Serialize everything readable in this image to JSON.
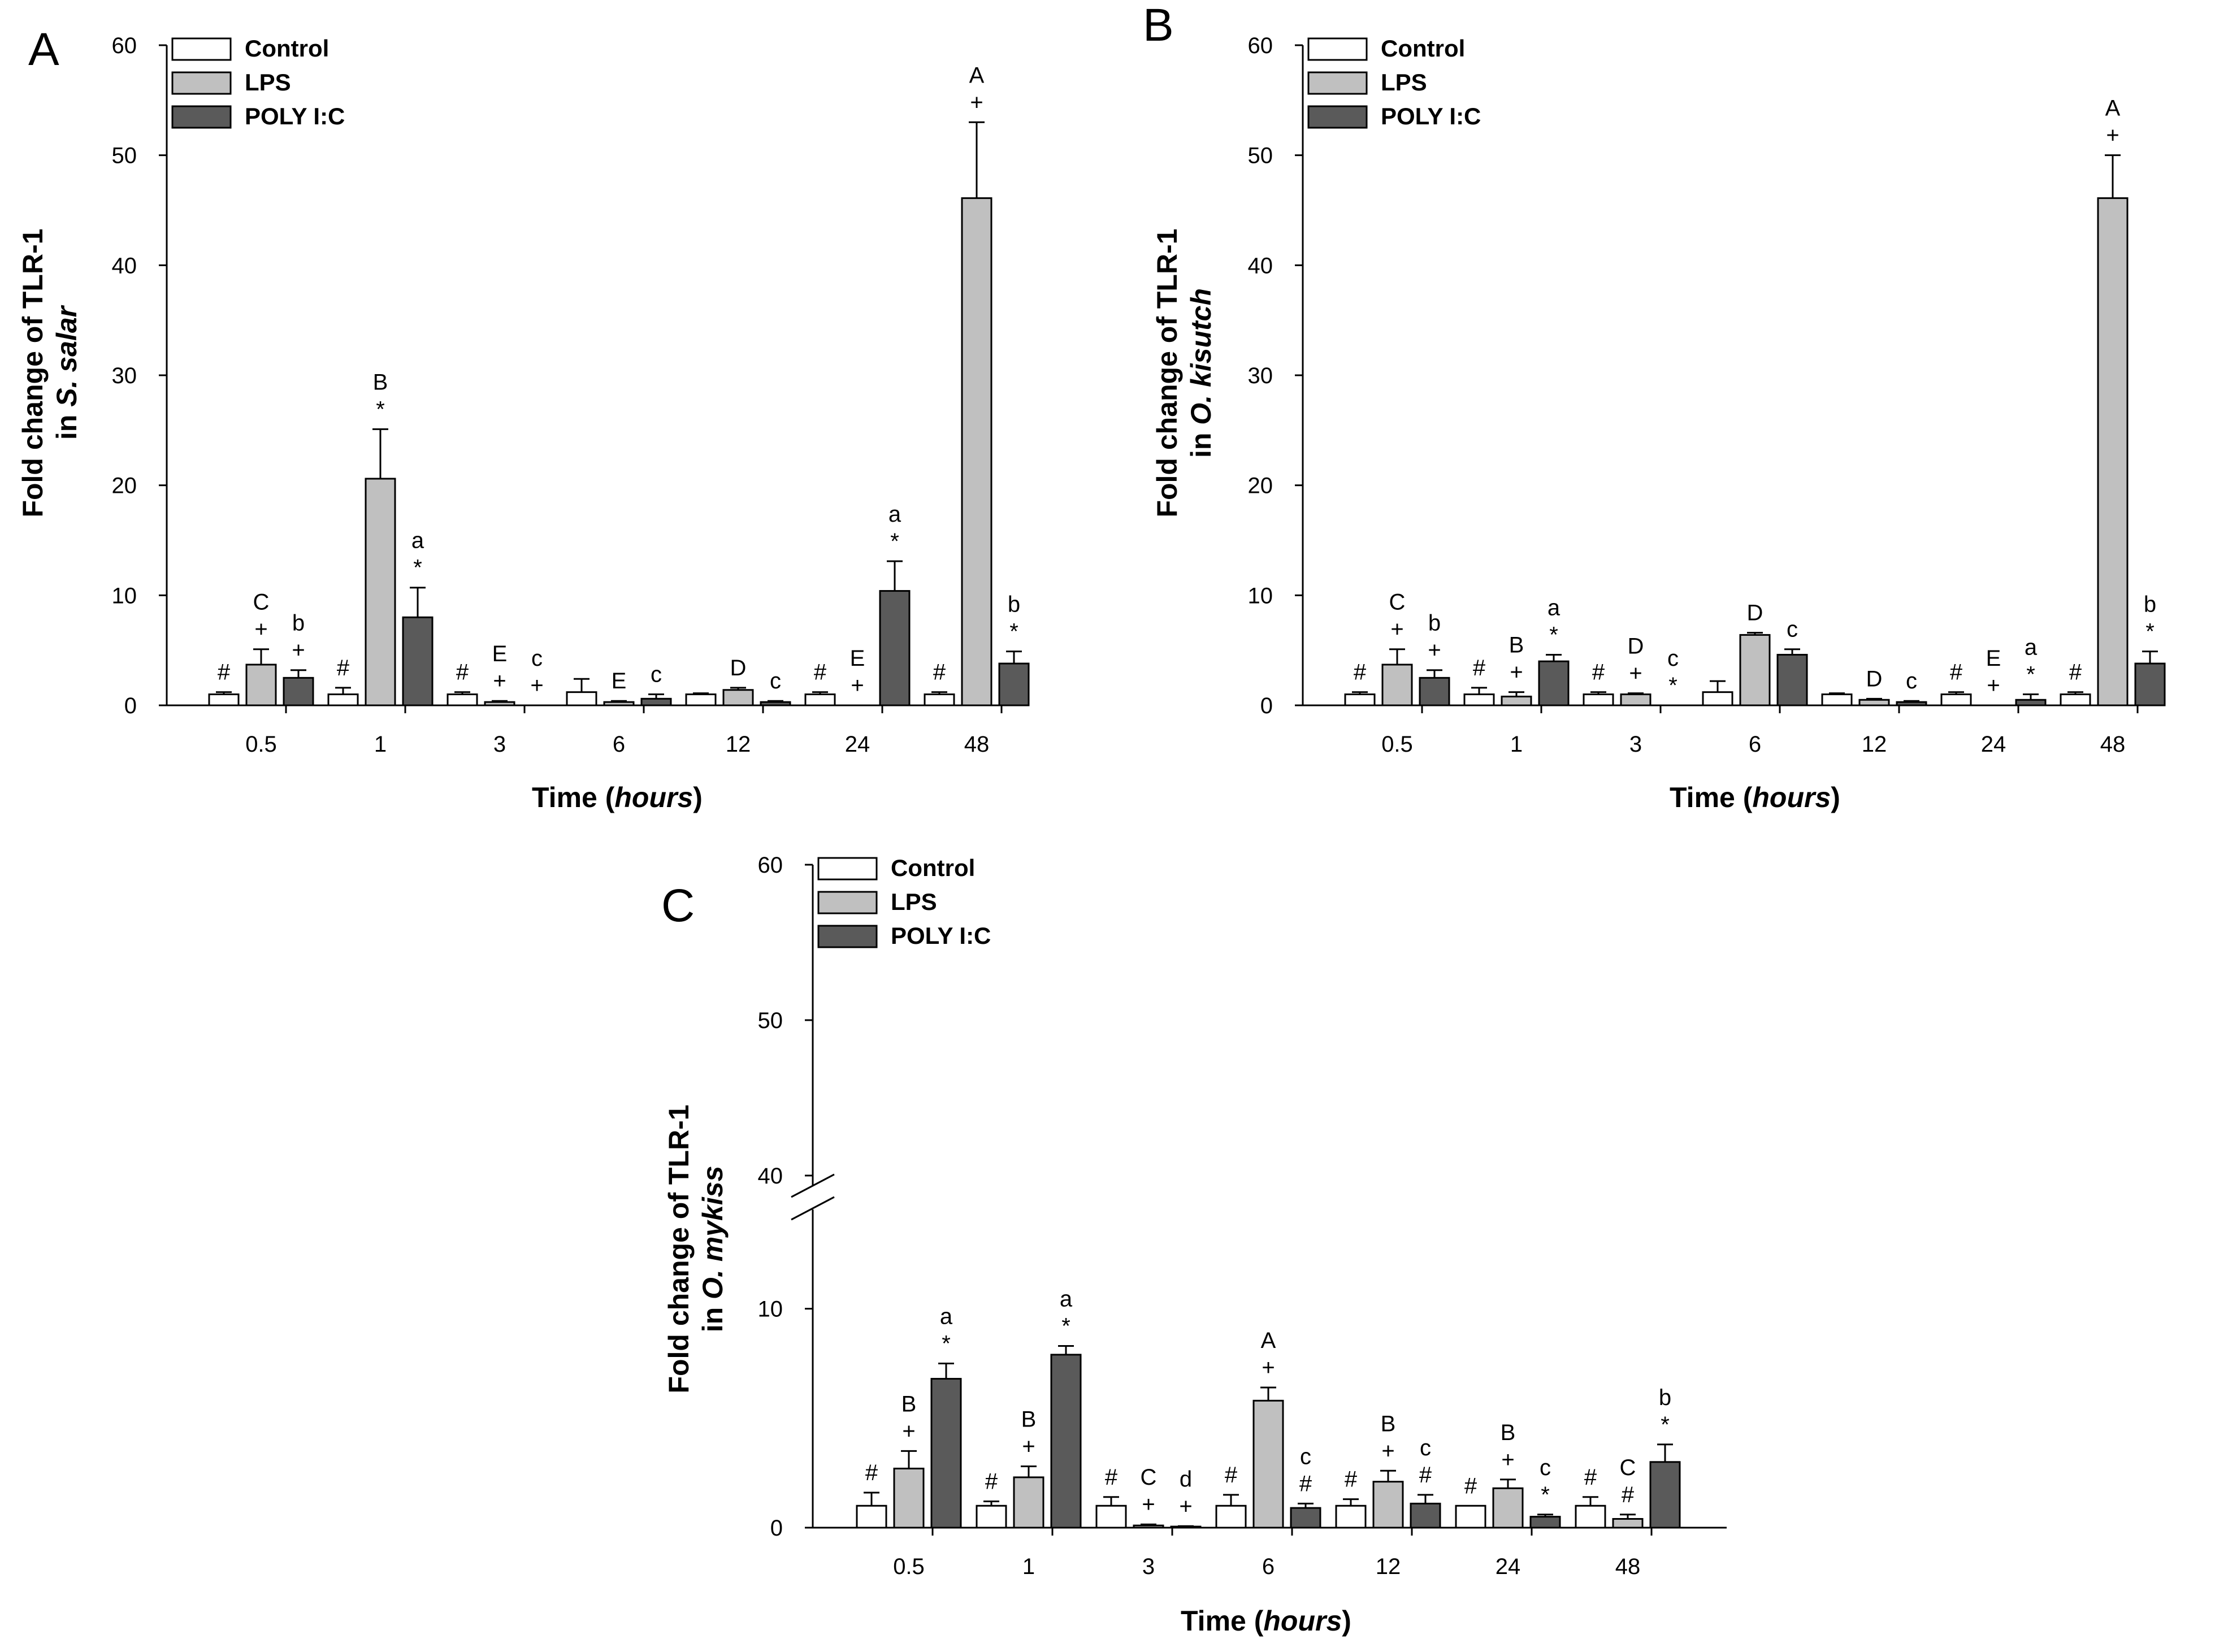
{
  "legend": {
    "control": "Control",
    "lps": "LPS",
    "poly": "POLY I:C"
  },
  "colors": {
    "control": "#ffffff",
    "lps": "#c0c0c0",
    "poly": "#5a5a5a"
  },
  "chart_data": [
    {
      "type": "bar",
      "panel_label": "A",
      "categories": [
        "0.5",
        "1",
        "3",
        "6",
        "12",
        "24",
        "48"
      ],
      "ylabel_line1": "Fold change of TLR-1",
      "ylabel_line2_prefix": "in ",
      "ylabel_line2_species": "S. salar",
      "xlabel_prefix": "Time (",
      "xlabel_unit": "hours",
      "xlabel_suffix": ")",
      "ylim": [
        0,
        60
      ],
      "yticks": [
        "0",
        "10",
        "20",
        "30",
        "40",
        "50",
        "60"
      ],
      "legend_position": "top-left",
      "series": [
        {
          "name": "Control",
          "values": [
            1.0,
            1.0,
            1.0,
            1.2,
            1.0,
            1.0,
            1.0
          ],
          "errors": [
            0.2,
            0.6,
            0.2,
            1.2,
            0.1,
            0.2,
            0.2
          ],
          "annotations": [
            [
              "#"
            ],
            [
              "#"
            ],
            [
              "#"
            ],
            [],
            [],
            [
              "#"
            ],
            [
              "#"
            ]
          ]
        },
        {
          "name": "LPS",
          "values": [
            3.7,
            20.6,
            0.3,
            0.3,
            1.4,
            0,
            46.1
          ],
          "errors": [
            1.4,
            4.5,
            0.1,
            0.1,
            0.2,
            0,
            6.9
          ],
          "annotations": [
            [
              "+",
              "C"
            ],
            [
              "*",
              "B"
            ],
            [
              "+",
              "E"
            ],
            [
              "E"
            ],
            [
              "D"
            ],
            [
              "+",
              "E"
            ],
            [
              "+",
              "A"
            ]
          ]
        },
        {
          "name": "POLY I:C",
          "values": [
            2.5,
            8.0,
            0,
            0.6,
            0.3,
            10.4,
            3.8
          ],
          "errors": [
            0.7,
            2.7,
            0,
            0.4,
            0.1,
            2.7,
            1.1
          ],
          "annotations": [
            [
              "+",
              "b"
            ],
            [
              "*",
              "a"
            ],
            [
              "+",
              "c"
            ],
            [
              "c"
            ],
            [
              "c"
            ],
            [
              "*",
              "a"
            ],
            [
              "*",
              "b"
            ]
          ]
        }
      ]
    },
    {
      "type": "bar",
      "panel_label": "B",
      "categories": [
        "0.5",
        "1",
        "3",
        "6",
        "12",
        "24",
        "48"
      ],
      "ylabel_line1": "Fold change of TLR-1",
      "ylabel_line2_prefix": "in ",
      "ylabel_line2_species": "O. kisutch",
      "xlabel_prefix": "Time (",
      "xlabel_unit": "hours",
      "xlabel_suffix": ")",
      "ylim": [
        0,
        60
      ],
      "yticks": [
        "0",
        "10",
        "20",
        "30",
        "40",
        "50",
        "60"
      ],
      "legend_position": "top-left",
      "series": [
        {
          "name": "Control",
          "values": [
            1.0,
            1.0,
            1.0,
            1.2,
            1.0,
            1.0,
            1.0
          ],
          "errors": [
            0.2,
            0.6,
            0.2,
            1.0,
            0.1,
            0.2,
            0.2
          ],
          "annotations": [
            [
              "#"
            ],
            [
              "#"
            ],
            [
              "#"
            ],
            [],
            [],
            [
              "#"
            ],
            [
              "#"
            ]
          ]
        },
        {
          "name": "LPS",
          "values": [
            3.7,
            0.8,
            1.0,
            6.4,
            0.5,
            0,
            46.1
          ],
          "errors": [
            1.4,
            0.4,
            0.1,
            0.2,
            0.1,
            0,
            3.9
          ],
          "annotations": [
            [
              "+",
              "C"
            ],
            [
              "+",
              "B"
            ],
            [
              "+",
              "D"
            ],
            [
              "D"
            ],
            [
              "D"
            ],
            [
              "+",
              "E"
            ],
            [
              "+",
              "A"
            ]
          ]
        },
        {
          "name": "POLY I:C",
          "values": [
            2.5,
            4.0,
            0,
            4.6,
            0.3,
            0.5,
            3.8
          ],
          "errors": [
            0.7,
            0.6,
            0,
            0.5,
            0.1,
            0.5,
            1.1
          ],
          "annotations": [
            [
              "+",
              "b"
            ],
            [
              "*",
              "a"
            ],
            [
              "*",
              "c"
            ],
            [
              "c"
            ],
            [
              "c"
            ],
            [
              "*",
              "a"
            ],
            [
              "*",
              "b"
            ]
          ]
        }
      ]
    },
    {
      "type": "bar",
      "panel_label": "C",
      "categories": [
        "0.5",
        "1",
        "3",
        "6",
        "12",
        "24",
        "48"
      ],
      "ylabel_line1": "Fold change of TLR-1",
      "ylabel_line2_prefix": "in ",
      "ylabel_line2_species": "O. mykiss",
      "xlabel_prefix": "Time (",
      "xlabel_unit": "hours",
      "xlabel_suffix": ")",
      "ylim": [
        0,
        60
      ],
      "axis_break": [
        13.5,
        40
      ],
      "yticks": [
        "0",
        "10",
        "40",
        "50",
        "60"
      ],
      "legend_position": "top-left",
      "series": [
        {
          "name": "Control",
          "values": [
            1.0,
            1.0,
            1.0,
            1.0,
            1.0,
            1.0,
            1.0
          ],
          "errors": [
            0.6,
            0.2,
            0.4,
            0.5,
            0.3,
            0.0,
            0.4
          ],
          "annotations": [
            [
              "#"
            ],
            [
              "#"
            ],
            [
              "#"
            ],
            [
              "#"
            ],
            [
              "#"
            ],
            [
              "#"
            ],
            [
              "#"
            ]
          ]
        },
        {
          "name": "LPS",
          "values": [
            2.7,
            2.3,
            0.1,
            5.8,
            2.1,
            1.8,
            0.4
          ],
          "errors": [
            0.8,
            0.5,
            0.05,
            0.6,
            0.5,
            0.4,
            0.2
          ],
          "annotations": [
            [
              "+",
              "B"
            ],
            [
              "+",
              "B"
            ],
            [
              "+",
              "C"
            ],
            [
              "+",
              "A"
            ],
            [
              "+",
              "B"
            ],
            [
              "+",
              "B"
            ],
            [
              "#",
              "C"
            ]
          ]
        },
        {
          "name": "POLY I:C",
          "values": [
            6.8,
            7.9,
            0.05,
            0.9,
            1.1,
            0.5,
            3.0
          ],
          "errors": [
            0.7,
            0.4,
            0.02,
            0.2,
            0.4,
            0.1,
            0.8
          ],
          "annotations": [
            [
              "*",
              "a"
            ],
            [
              "*",
              "a"
            ],
            [
              "+",
              "d"
            ],
            [
              "#",
              "c"
            ],
            [
              "#",
              "c"
            ],
            [
              "*",
              "c"
            ],
            [
              "*",
              "b"
            ]
          ]
        }
      ]
    }
  ]
}
